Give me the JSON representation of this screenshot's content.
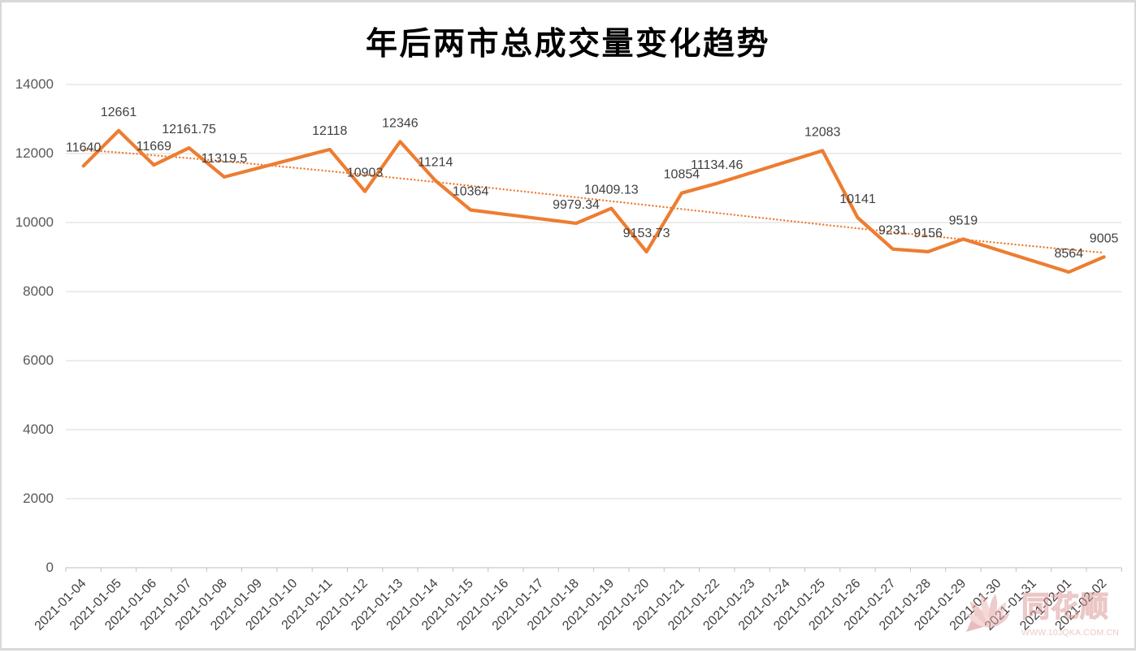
{
  "chart_data": {
    "type": "line",
    "title": "年后两市总成交量变化趋势",
    "categories": [
      "2021-01-04",
      "2021-01-05",
      "2021-01-06",
      "2021-01-07",
      "2021-01-08",
      "2021-01-09",
      "2021-01-10",
      "2021-01-11",
      "2021-01-12",
      "2021-01-13",
      "2021-01-14",
      "2021-01-15",
      "2021-01-16",
      "2021-01-17",
      "2021-01-18",
      "2021-01-19",
      "2021-01-20",
      "2021-01-21",
      "2021-01-22",
      "2021-01-23",
      "2021-01-24",
      "2021-01-25",
      "2021-01-26",
      "2021-01-27",
      "2021-01-28",
      "2021-01-29",
      "2021-01-30",
      "2021-01-31",
      "2021-02-01",
      "2021-02-02"
    ],
    "points": [
      {
        "date": "2021-01-04",
        "value": 11640
      },
      {
        "date": "2021-01-05",
        "value": 12661
      },
      {
        "date": "2021-01-06",
        "value": 11669
      },
      {
        "date": "2021-01-07",
        "value": 12161.75
      },
      {
        "date": "2021-01-08",
        "value": 11319.5
      },
      {
        "date": "2021-01-11",
        "value": 12118
      },
      {
        "date": "2021-01-12",
        "value": 10903
      },
      {
        "date": "2021-01-13",
        "value": 12346
      },
      {
        "date": "2021-01-14",
        "value": 11214
      },
      {
        "date": "2021-01-15",
        "value": 10364
      },
      {
        "date": "2021-01-18",
        "value": 9979.34
      },
      {
        "date": "2021-01-19",
        "value": 10409.13
      },
      {
        "date": "2021-01-20",
        "value": 9153.73
      },
      {
        "date": "2021-01-21",
        "value": 10854
      },
      {
        "date": "2021-01-22",
        "value": 11134.46
      },
      {
        "date": "2021-01-25",
        "value": 12083
      },
      {
        "date": "2021-01-26",
        "value": 10141
      },
      {
        "date": "2021-01-27",
        "value": 9231
      },
      {
        "date": "2021-01-28",
        "value": 9156
      },
      {
        "date": "2021-01-29",
        "value": 9519
      },
      {
        "date": "2021-02-01",
        "value": 8564
      },
      {
        "date": "2021-02-02",
        "value": 9005
      }
    ],
    "ylim": [
      0,
      14000
    ],
    "ytick_step": 2000,
    "yticks": [
      "0",
      "2000",
      "4000",
      "6000",
      "8000",
      "10000",
      "12000",
      "14000"
    ],
    "grid": true,
    "legend": "none",
    "series_color": "#ED7D31",
    "trendline": {
      "style": "dotted",
      "color": "#ED7D31",
      "fit": "polynomial",
      "order": 3,
      "samples": [
        {
          "i": 0,
          "v": 12105
        },
        {
          "i": 2.5,
          "v": 11880
        },
        {
          "i": 4.7,
          "v": 11700
        },
        {
          "i": 7,
          "v": 11530
        },
        {
          "i": 8.2,
          "v": 11420
        },
        {
          "i": 12.5,
          "v": 10915
        },
        {
          "i": 14.8,
          "v": 10535
        },
        {
          "i": 16.5,
          "v": 10400
        },
        {
          "i": 19.4,
          "v": 10150
        },
        {
          "i": 23,
          "v": 9815
        },
        {
          "i": 26.5,
          "v": 9330
        },
        {
          "i": 29,
          "v": 9114
        }
      ]
    }
  },
  "watermark": {
    "brand": "同花顺",
    "url": "WWW.10JQKA.COM.CN",
    "icon": "flower-logo",
    "color": "#dc9494"
  }
}
